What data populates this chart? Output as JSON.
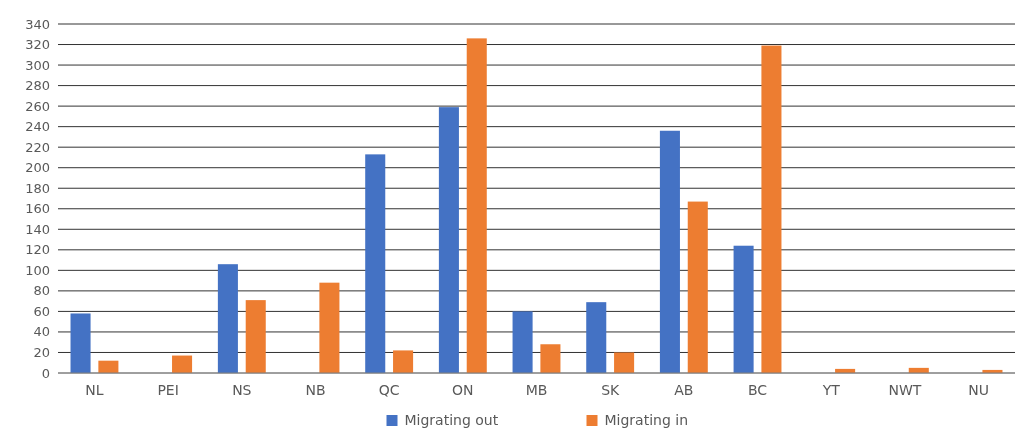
{
  "chart_data": {
    "type": "bar",
    "categories": [
      "NL",
      "PEI",
      "NS",
      "NB",
      "QC",
      "ON",
      "MB",
      "SK",
      "AB",
      "BC",
      "YT",
      "NWT",
      "NU"
    ],
    "series": [
      {
        "name": "Migrating out",
        "color": "#4472c4",
        "values": [
          58,
          null,
          106,
          null,
          213,
          259,
          60,
          69,
          236,
          124,
          null,
          null,
          null
        ]
      },
      {
        "name": "Migrating in",
        "color": "#ed7d31",
        "values": [
          12,
          17,
          71,
          88,
          22,
          326,
          28,
          20,
          167,
          319,
          4,
          5,
          3
        ]
      }
    ],
    "ylim": [
      0,
      340
    ],
    "yticks": [
      0,
      20,
      40,
      60,
      80,
      100,
      120,
      140,
      160,
      180,
      200,
      220,
      240,
      260,
      280,
      300,
      320,
      340
    ],
    "grid": "y",
    "legend": "bottom"
  }
}
